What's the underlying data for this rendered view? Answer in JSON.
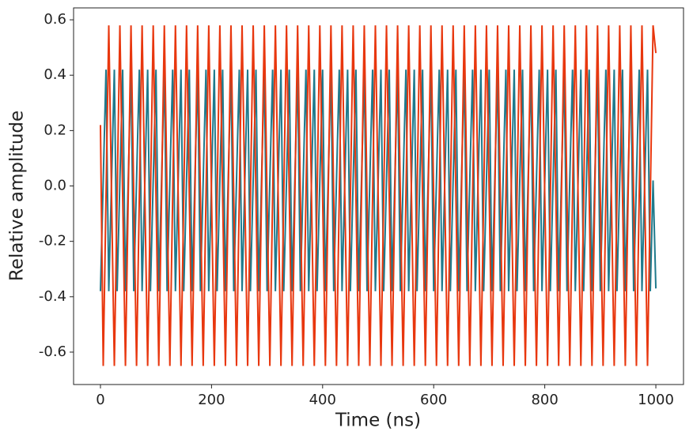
{
  "chart_data": {
    "type": "line",
    "xlabel": "Time (ns)",
    "ylabel": "Relative amplitude",
    "xlim": [
      -48.4,
      1049.8
    ],
    "ylim": [
      -0.717,
      0.643
    ],
    "xticks": [
      0,
      200,
      400,
      600,
      800,
      1000
    ],
    "yticks": [
      {
        "value": -0.6,
        "label": "-0.6"
      },
      {
        "value": -0.4,
        "label": "-0.4"
      },
      {
        "value": -0.2,
        "label": "-0.2"
      },
      {
        "value": 0,
        "label": "0.0"
      },
      {
        "value": 0.2,
        "label": "0.2"
      },
      {
        "value": 0.4,
        "label": "0.4"
      },
      {
        "value": 0.6,
        "label": "0.6"
      }
    ],
    "x": [
      0,
      5,
      10,
      15,
      20,
      25,
      30,
      35,
      40,
      45,
      50,
      55,
      60,
      65,
      70,
      75,
      80,
      85,
      90,
      95,
      100,
      105,
      110,
      115,
      120,
      125,
      130,
      135,
      140,
      145,
      150,
      155,
      160,
      165,
      170,
      175,
      180,
      185,
      190,
      195,
      200,
      205,
      210,
      215,
      220,
      225,
      230,
      235,
      240,
      245,
      250,
      255,
      260,
      265,
      270,
      275,
      280,
      285,
      290,
      295,
      300,
      305,
      310,
      315,
      320,
      325,
      330,
      335,
      340,
      345,
      350,
      355,
      360,
      365,
      370,
      375,
      380,
      385,
      390,
      395,
      400,
      405,
      410,
      415,
      420,
      425,
      430,
      435,
      440,
      445,
      450,
      455,
      460,
      465,
      470,
      475,
      480,
      485,
      490,
      495,
      500,
      505,
      510,
      515,
      520,
      525,
      530,
      535,
      540,
      545,
      550,
      555,
      560,
      565,
      570,
      575,
      580,
      585,
      590,
      595,
      600,
      605,
      610,
      615,
      620,
      625,
      630,
      635,
      640,
      645,
      650,
      655,
      660,
      665,
      670,
      675,
      680,
      685,
      690,
      695,
      700,
      705,
      710,
      715,
      720,
      725,
      730,
      735,
      740,
      745,
      750,
      755,
      760,
      765,
      770,
      775,
      780,
      785,
      790,
      795,
      800,
      805,
      810,
      815,
      820,
      825,
      830,
      835,
      840,
      845,
      850,
      855,
      860,
      865,
      870,
      875,
      880,
      885,
      890,
      895,
      900,
      905,
      910,
      915,
      920,
      925,
      930,
      935,
      940,
      945,
      950,
      955,
      960,
      965,
      970,
      975,
      980,
      985,
      990,
      995,
      1000
    ],
    "series": [
      {
        "color": "#1f7a8c",
        "values": [
          -0.38,
          0.02,
          0.42,
          -0.38,
          0.02,
          0.42,
          -0.38,
          0.02,
          0.42,
          -0.38,
          0.02,
          0.42,
          -0.38,
          0.02,
          0.42,
          -0.38,
          0.02,
          0.42,
          -0.38,
          0.02,
          0.42,
          -0.38,
          0.02,
          0.42,
          -0.38,
          0.02,
          0.42,
          -0.38,
          0.02,
          0.42,
          -0.38,
          0.02,
          0.42,
          -0.38,
          0.02,
          0.42,
          -0.38,
          0.02,
          0.42,
          -0.38,
          0.02,
          0.42,
          -0.38,
          0.02,
          0.42,
          -0.38,
          0.02,
          0.42,
          -0.38,
          0.02,
          0.42,
          -0.38,
          0.02,
          0.42,
          -0.38,
          0.02,
          0.42,
          -0.38,
          0.02,
          0.42,
          -0.38,
          0.02,
          0.42,
          -0.38,
          0.02,
          0.42,
          -0.38,
          0.02,
          0.42,
          -0.38,
          0.02,
          0.42,
          -0.38,
          0.02,
          0.42,
          -0.38,
          0.02,
          0.42,
          -0.38,
          0.02,
          0.42,
          -0.38,
          0.02,
          0.42,
          -0.38,
          0.02,
          0.42,
          -0.38,
          0.02,
          0.42,
          -0.38,
          0.02,
          0.42,
          -0.38,
          0.02,
          0.42,
          -0.38,
          0.02,
          0.42,
          -0.38,
          0.02,
          0.42,
          -0.38,
          0.02,
          0.42,
          -0.38,
          0.02,
          0.42,
          -0.38,
          0.02,
          0.42,
          -0.38,
          0.02,
          0.42,
          -0.38,
          0.02,
          0.42,
          -0.38,
          0.02,
          0.42,
          -0.38,
          0.02,
          0.42,
          -0.38,
          0.02,
          0.42,
          -0.38,
          0.02,
          0.42,
          -0.38,
          0.02,
          0.42,
          -0.38,
          0.02,
          0.42,
          -0.38,
          0.02,
          0.42,
          -0.38,
          0.02,
          0.42,
          -0.38,
          0.02,
          0.42,
          -0.38,
          0.02,
          0.42,
          -0.38,
          0.02,
          0.42,
          -0.38,
          0.02,
          0.42,
          -0.38,
          0.02,
          0.42,
          -0.38,
          0.02,
          0.42,
          -0.38,
          0.02,
          0.42,
          -0.38,
          0.02,
          0.42,
          -0.38,
          0.02,
          0.42,
          -0.38,
          0.02,
          0.42,
          -0.38,
          0.02,
          0.42,
          -0.38,
          0.02,
          0.42,
          -0.38,
          0.02,
          0.42,
          -0.38,
          0.02,
          0.42,
          -0.38,
          0.02,
          0.42,
          -0.38,
          0.02,
          0.42,
          -0.38,
          0.02,
          0.42,
          -0.38,
          0.02,
          0.42,
          -0.38,
          0.02,
          0.42,
          -0.38,
          0.02,
          -0.37
        ]
      },
      {
        "color": "#e8370e",
        "values": [
          0.22,
          -0.65,
          -0.04,
          0.58,
          -0.04,
          -0.65,
          -0.04,
          0.58,
          -0.04,
          -0.65,
          -0.04,
          0.58,
          -0.04,
          -0.65,
          -0.04,
          0.58,
          -0.04,
          -0.65,
          -0.04,
          0.58,
          -0.04,
          -0.65,
          -0.04,
          0.58,
          -0.04,
          -0.65,
          -0.04,
          0.58,
          -0.04,
          -0.65,
          -0.04,
          0.58,
          -0.04,
          -0.65,
          -0.04,
          0.58,
          -0.04,
          -0.65,
          -0.04,
          0.58,
          -0.04,
          -0.65,
          -0.04,
          0.58,
          -0.04,
          -0.65,
          -0.04,
          0.58,
          -0.04,
          -0.65,
          -0.04,
          0.58,
          -0.04,
          -0.65,
          -0.04,
          0.58,
          -0.04,
          -0.65,
          -0.04,
          0.58,
          -0.04,
          -0.65,
          -0.04,
          0.58,
          -0.04,
          -0.65,
          -0.04,
          0.58,
          -0.04,
          -0.65,
          -0.04,
          0.58,
          -0.04,
          -0.65,
          -0.04,
          0.58,
          -0.04,
          -0.65,
          -0.04,
          0.58,
          -0.04,
          -0.65,
          -0.04,
          0.58,
          -0.04,
          -0.65,
          -0.04,
          0.58,
          -0.04,
          -0.65,
          -0.04,
          0.58,
          -0.04,
          -0.65,
          -0.04,
          0.58,
          -0.04,
          -0.65,
          -0.04,
          0.58,
          -0.04,
          -0.65,
          -0.04,
          0.58,
          -0.04,
          -0.65,
          -0.04,
          0.58,
          -0.04,
          -0.65,
          -0.04,
          0.58,
          -0.04,
          -0.65,
          -0.04,
          0.58,
          -0.04,
          -0.65,
          -0.04,
          0.58,
          -0.04,
          -0.65,
          -0.04,
          0.58,
          -0.04,
          -0.65,
          -0.04,
          0.58,
          -0.04,
          -0.65,
          -0.04,
          0.58,
          -0.04,
          -0.65,
          -0.04,
          0.58,
          -0.04,
          -0.65,
          -0.04,
          0.58,
          -0.04,
          -0.65,
          -0.04,
          0.58,
          -0.04,
          -0.65,
          -0.04,
          0.58,
          -0.04,
          -0.65,
          -0.04,
          0.58,
          -0.04,
          -0.65,
          -0.04,
          0.58,
          -0.04,
          -0.65,
          -0.04,
          0.58,
          -0.04,
          -0.65,
          -0.04,
          0.58,
          -0.04,
          -0.65,
          -0.04,
          0.58,
          -0.04,
          -0.65,
          -0.04,
          0.58,
          -0.04,
          -0.65,
          -0.04,
          0.58,
          -0.04,
          -0.65,
          -0.04,
          0.58,
          -0.04,
          -0.65,
          -0.04,
          0.58,
          -0.04,
          -0.65,
          -0.04,
          0.58,
          -0.04,
          -0.65,
          -0.04,
          0.58,
          -0.04,
          -0.65,
          -0.04,
          0.58,
          -0.04,
          -0.65,
          -0.04,
          0.58,
          0.48
        ]
      }
    ]
  }
}
